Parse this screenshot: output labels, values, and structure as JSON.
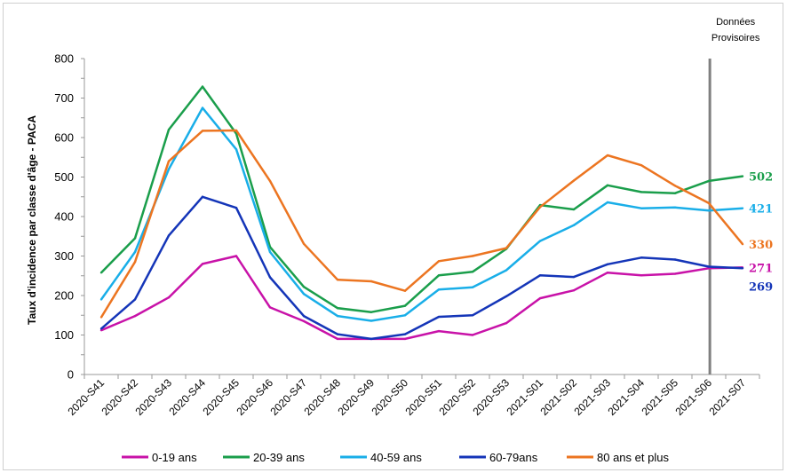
{
  "chart_data": {
    "type": "line",
    "title": "",
    "xlabel": "",
    "ylabel": "Taux d'incidence par classe d'âge - PACA",
    "ylim": [
      0,
      800
    ],
    "y_ticks": [
      "0",
      "100",
      "200",
      "300",
      "400",
      "500",
      "600",
      "700",
      "800"
    ],
    "categories": [
      "2020-S41",
      "2020-S42",
      "2020-S43",
      "2020-S44",
      "2020-S45",
      "2020-S46",
      "2020-S47",
      "2020-S48",
      "2020-S49",
      "2020-S50",
      "2020-S51",
      "2020-S52",
      "2020-S53",
      "2021-S01",
      "2021-S02",
      "2021-S03",
      "2021-S04",
      "2021-S05",
      "2021-S06",
      "2021-S07"
    ],
    "annotation": {
      "line1": "Données",
      "line2": "Provisoires",
      "at_category": "2021-S06"
    },
    "grid": false,
    "legend_position": "bottom",
    "series": [
      {
        "name": "0-19 ans",
        "color": "#c812a8",
        "end_label": "271",
        "values": [
          112,
          148,
          195,
          280,
          300,
          170,
          135,
          90,
          90,
          90,
          110,
          100,
          130,
          193,
          213,
          258,
          251,
          255,
          269,
          271
        ]
      },
      {
        "name": "20-39 ans",
        "color": "#1a9e4b",
        "end_label": "502",
        "values": [
          258,
          345,
          620,
          729,
          610,
          323,
          222,
          168,
          158,
          174,
          251,
          260,
          318,
          429,
          418,
          479,
          462,
          459,
          490,
          502
        ]
      },
      {
        "name": "40-59 ans",
        "color": "#19aee8",
        "end_label": "421",
        "values": [
          190,
          310,
          520,
          675,
          570,
          310,
          204,
          148,
          136,
          150,
          215,
          221,
          264,
          338,
          378,
          436,
          421,
          423,
          415,
          421
        ]
      },
      {
        "name": "60-79ans",
        "color": "#1435b8",
        "end_label": "269",
        "values": [
          116,
          190,
          352,
          450,
          422,
          246,
          148,
          102,
          90,
          102,
          146,
          150,
          198,
          251,
          247,
          279,
          296,
          291,
          273,
          269
        ]
      },
      {
        "name": "80 ans et plus",
        "color": "#ec7521",
        "end_label": "330",
        "values": [
          145,
          285,
          540,
          617,
          618,
          490,
          331,
          240,
          236,
          212,
          287,
          300,
          320,
          424,
          491,
          555,
          530,
          478,
          434,
          330
        ]
      }
    ]
  }
}
